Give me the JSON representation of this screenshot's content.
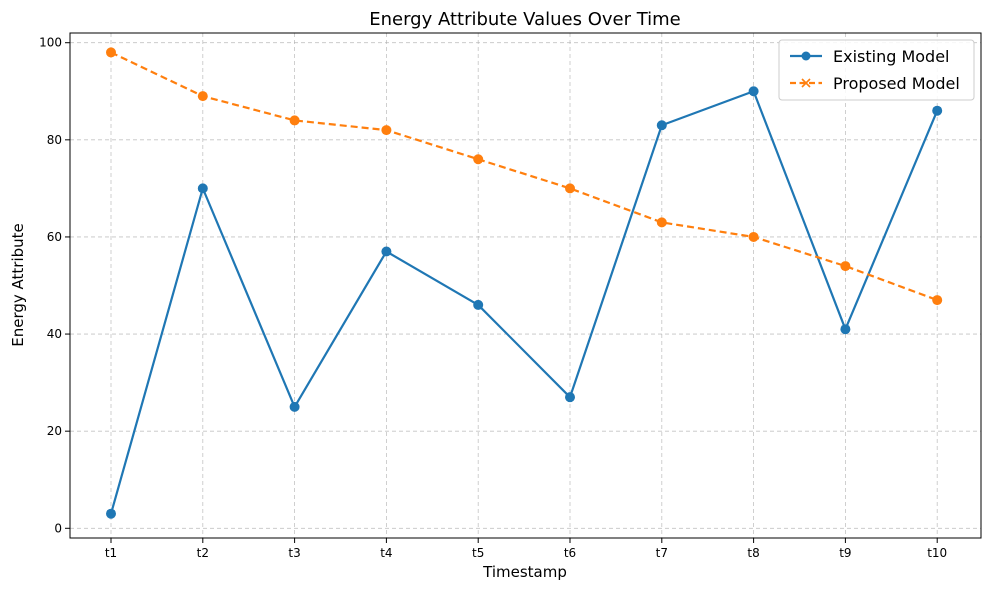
{
  "chart_data": {
    "type": "line",
    "title": "Energy Attribute Values Over Time",
    "xlabel": "Timestamp",
    "ylabel": "Energy Attribute",
    "categories": [
      "t1",
      "t2",
      "t3",
      "t4",
      "t5",
      "t6",
      "t7",
      "t8",
      "t9",
      "t10"
    ],
    "ylim": [
      -2,
      102
    ],
    "yticks": [
      0,
      20,
      40,
      60,
      80,
      100
    ],
    "grid": true,
    "legend_position": "top-right",
    "series": [
      {
        "name": "Existing Model",
        "color": "#1f77b4",
        "line_style": "solid",
        "legend_marker": "circle",
        "values": [
          3,
          70,
          25,
          57,
          46,
          27,
          83,
          90,
          41,
          86
        ]
      },
      {
        "name": "Proposed Model",
        "color": "#ff7f0e",
        "line_style": "dashed",
        "legend_marker": "x",
        "values": [
          98,
          89,
          84,
          82,
          76,
          70,
          63,
          60,
          54,
          47
        ]
      }
    ]
  }
}
